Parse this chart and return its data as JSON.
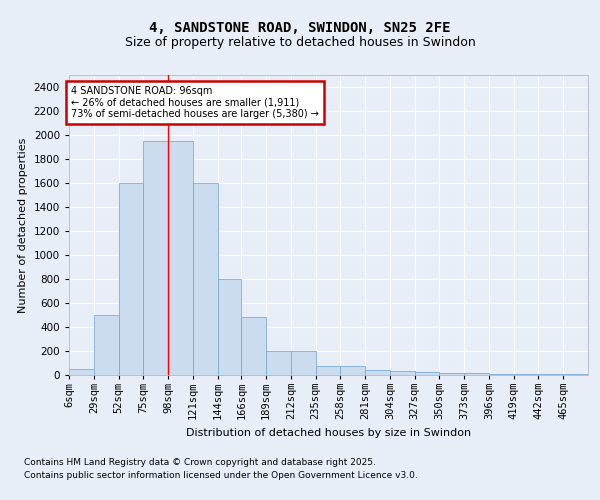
{
  "title": "4, SANDSTONE ROAD, SWINDON, SN25 2FE",
  "subtitle": "Size of property relative to detached houses in Swindon",
  "xlabel": "Distribution of detached houses by size in Swindon",
  "ylabel": "Number of detached properties",
  "footer_line1": "Contains HM Land Registry data © Crown copyright and database right 2025.",
  "footer_line2": "Contains public sector information licensed under the Open Government Licence v3.0.",
  "annotation_title": "4 SANDSTONE ROAD: 96sqm",
  "annotation_line1": "← 26% of detached houses are smaller (1,911)",
  "annotation_line2": "73% of semi-detached houses are larger (5,380) →",
  "bar_color": "#ccdcef",
  "bar_edge_color": "#7aadd4",
  "red_line_x": 98,
  "annotation_box_color": "#ffffff",
  "annotation_box_edge": "#cc0000",
  "categories": [
    "6sqm",
    "29sqm",
    "52sqm",
    "75sqm",
    "98sqm",
    "121sqm",
    "144sqm",
    "166sqm",
    "189sqm",
    "212sqm",
    "235sqm",
    "258sqm",
    "281sqm",
    "304sqm",
    "327sqm",
    "350sqm",
    "373sqm",
    "396sqm",
    "419sqm",
    "442sqm",
    "465sqm"
  ],
  "bin_edges": [
    6,
    29,
    52,
    75,
    98,
    121,
    144,
    166,
    189,
    212,
    235,
    258,
    281,
    304,
    327,
    350,
    373,
    396,
    419,
    442,
    465,
    488
  ],
  "values": [
    50,
    500,
    1600,
    1950,
    1950,
    1600,
    800,
    480,
    200,
    200,
    75,
    75,
    40,
    35,
    25,
    20,
    15,
    10,
    5,
    5,
    5
  ],
  "ylim": [
    0,
    2500
  ],
  "yticks": [
    0,
    200,
    400,
    600,
    800,
    1000,
    1200,
    1400,
    1600,
    1800,
    2000,
    2200,
    2400
  ],
  "background_color": "#e8eef7",
  "plot_background": "#e8eef7",
  "title_fontsize": 10,
  "subtitle_fontsize": 9,
  "axis_label_fontsize": 8,
  "tick_fontsize": 7.5,
  "footer_fontsize": 6.5
}
